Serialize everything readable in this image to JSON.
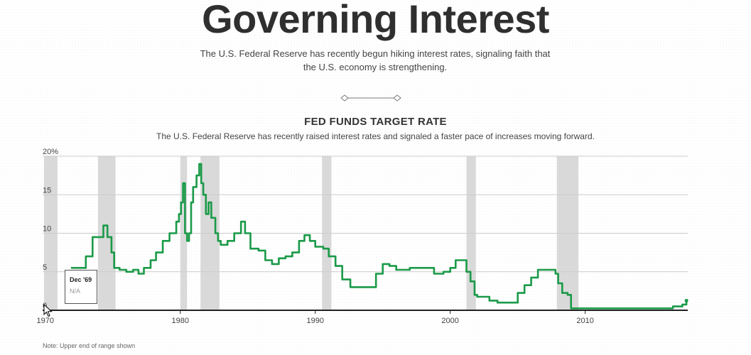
{
  "page": {
    "headline": "Governing Interest",
    "dek": "The U.S. Federal Reserve has recently begun hiking interest rates, signaling faith that the U.S. economy is strengthening."
  },
  "colors": {
    "line": "#1a9a48",
    "recession": "#d9d9d9",
    "grid": "#cccccc",
    "axis": "#222222"
  },
  "chart_data": {
    "type": "line",
    "title": "FED FUNDS TARGET RATE",
    "subtitle": "The U.S. Federal Reserve has recently raised interest rates and signaled a faster pace of increases moving forward.",
    "note": "Note: Upper end of range shown",
    "xlabel": "",
    "ylabel": "",
    "xlim": [
      1969.8,
      2017.6
    ],
    "ylim": [
      0,
      20
    ],
    "grid": true,
    "y_ticks": [
      0,
      5,
      10,
      15,
      20
    ],
    "y_tick_labels": [
      "0",
      "5",
      "10",
      "15",
      "20%"
    ],
    "x_ticks": [
      1970,
      1980,
      1990,
      2000,
      2010
    ],
    "x_tick_labels": [
      "1970",
      "1980",
      "1990",
      "2000",
      "2010"
    ],
    "recessions": [
      [
        1969.9,
        1970.9
      ],
      [
        1973.9,
        1975.2
      ],
      [
        1980.0,
        1980.5
      ],
      [
        1981.5,
        1982.9
      ],
      [
        1990.5,
        1991.2
      ],
      [
        2001.2,
        2001.9
      ],
      [
        2007.9,
        2009.5
      ]
    ],
    "series": [
      {
        "name": "Fed funds target rate",
        "x": [
          1971.9,
          1972.8,
          1973.0,
          1973.5,
          1974.0,
          1974.3,
          1974.6,
          1974.9,
          1975.1,
          1975.5,
          1976.0,
          1976.5,
          1976.9,
          1977.3,
          1977.8,
          1978.2,
          1978.7,
          1979.2,
          1979.7,
          1979.9,
          1980.05,
          1980.2,
          1980.35,
          1980.5,
          1980.65,
          1980.8,
          1980.95,
          1981.2,
          1981.4,
          1981.55,
          1981.7,
          1981.9,
          1982.1,
          1982.3,
          1982.6,
          1982.8,
          1983.0,
          1983.5,
          1984.0,
          1984.5,
          1984.8,
          1985.2,
          1985.8,
          1986.3,
          1986.8,
          1987.3,
          1987.8,
          1988.3,
          1988.8,
          1989.2,
          1989.6,
          1990.0,
          1990.6,
          1991.0,
          1991.5,
          1992.0,
          1992.6,
          1993.0,
          1994.0,
          1994.5,
          1995.0,
          1995.5,
          1996.0,
          1997.0,
          1998.0,
          1998.8,
          1999.5,
          2000.0,
          2000.4,
          2000.9,
          2001.2,
          2001.5,
          2001.8,
          2002.0,
          2002.9,
          2003.5,
          2004.5,
          2005.0,
          2005.5,
          2006.0,
          2006.5,
          2007.5,
          2007.8,
          2008.0,
          2008.3,
          2008.7,
          2008.95,
          2010.0,
          2015.95,
          2016.5,
          2016.95,
          2017.2,
          2017.5
        ],
        "values": [
          5.5,
          5.5,
          7.0,
          9.5,
          9.5,
          11.0,
          9.5,
          7.5,
          5.5,
          5.25,
          5.0,
          5.25,
          4.75,
          5.5,
          6.5,
          7.5,
          9.0,
          10.0,
          11.5,
          12.5,
          14.0,
          16.5,
          10.0,
          9.0,
          10.0,
          14.0,
          16.0,
          17.5,
          19.0,
          16.5,
          15.0,
          12.5,
          14.0,
          12.0,
          10.0,
          9.0,
          8.5,
          9.0,
          10.0,
          11.5,
          10.0,
          8.0,
          7.75,
          6.5,
          6.0,
          6.75,
          7.0,
          7.5,
          9.0,
          9.75,
          9.0,
          8.25,
          8.0,
          7.0,
          5.75,
          4.0,
          3.0,
          3.0,
          3.0,
          4.75,
          6.0,
          5.75,
          5.25,
          5.5,
          5.5,
          4.75,
          5.0,
          5.5,
          6.5,
          6.5,
          5.0,
          3.75,
          2.0,
          1.75,
          1.25,
          1.0,
          1.0,
          2.25,
          3.25,
          4.25,
          5.25,
          5.25,
          4.75,
          3.5,
          2.25,
          2.0,
          0.25,
          0.25,
          0.25,
          0.5,
          0.5,
          0.75,
          1.25
        ]
      }
    ]
  },
  "tooltip": {
    "date": "Dec '69",
    "value": "N/A"
  }
}
